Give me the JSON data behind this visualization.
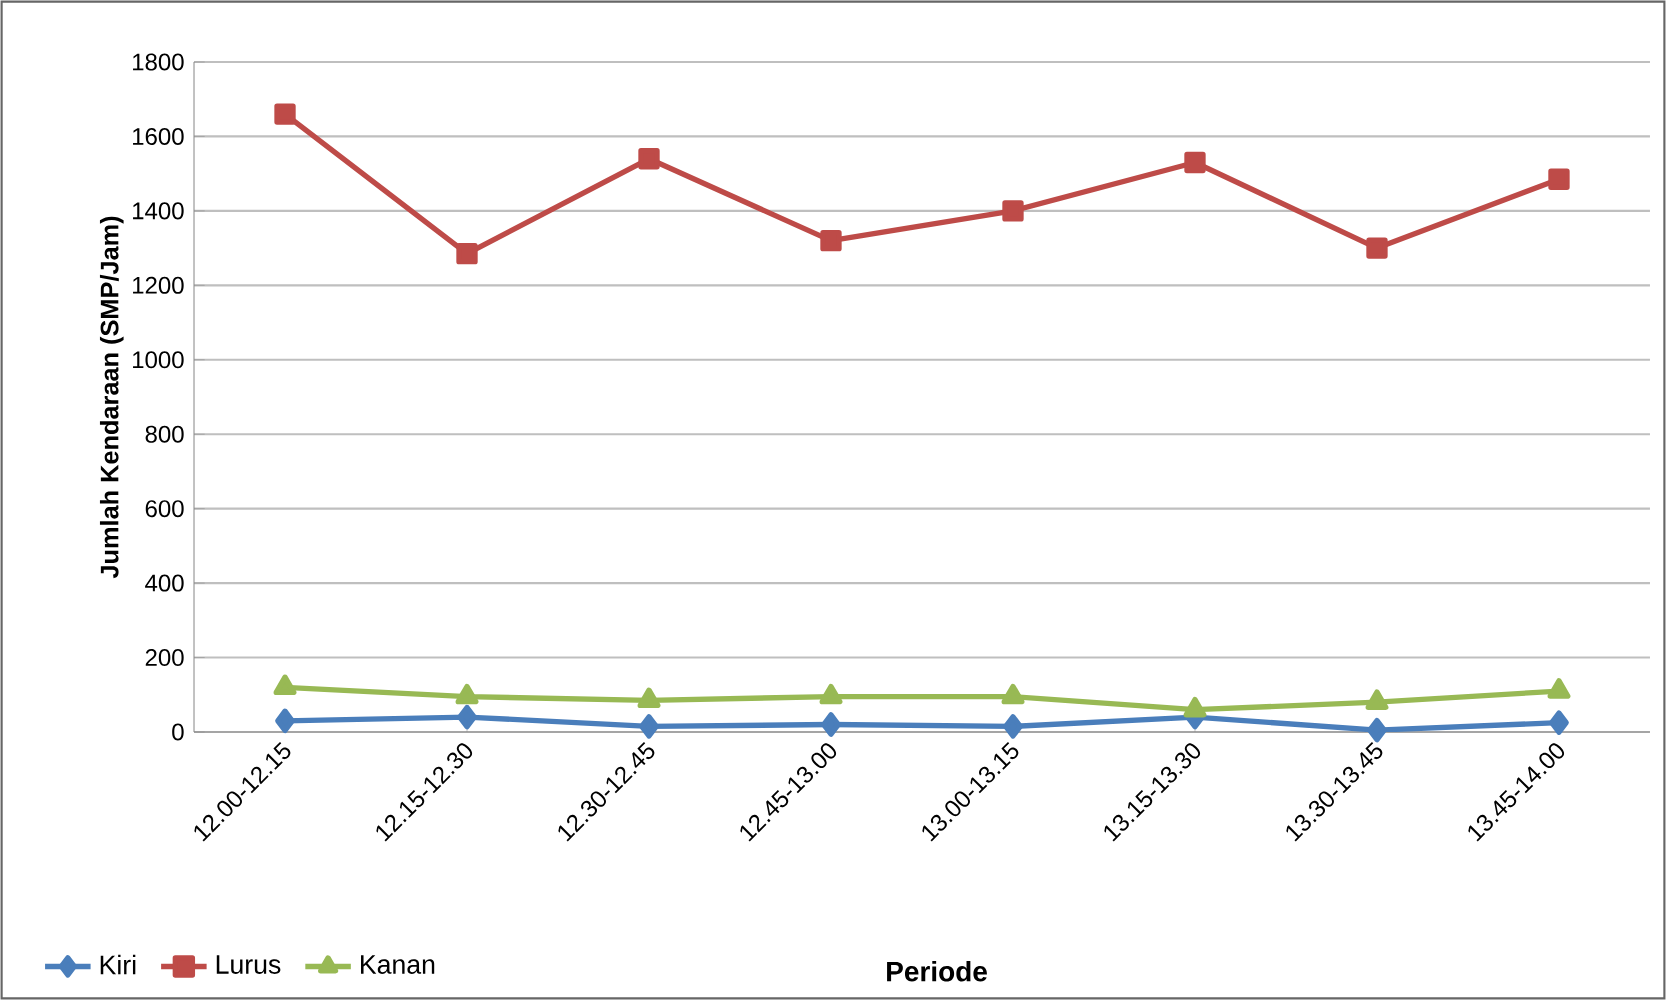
{
  "chart_data": {
    "type": "line",
    "xlabel": "Periode",
    "ylabel": "Jumlah Kendaraan (SMP/Jam)",
    "categories": [
      "12.00-12.15",
      "12.15-12.30",
      "12.30-12.45",
      "12.45-13.00",
      "13.00-13.15",
      "13.15-13.30",
      "13.30-13.45",
      "13.45-14.00"
    ],
    "series": [
      {
        "name": "Kiri",
        "color": "#4a7ebb",
        "marker": "diamond",
        "values": [
          30,
          40,
          15,
          20,
          15,
          40,
          5,
          25
        ]
      },
      {
        "name": "Lurus",
        "color": "#be4b48",
        "marker": "square",
        "values": [
          1660,
          1285,
          1540,
          1320,
          1400,
          1530,
          1300,
          1485
        ]
      },
      {
        "name": "Kanan",
        "color": "#98b954",
        "marker": "triangle",
        "values": [
          120,
          95,
          85,
          95,
          95,
          60,
          80,
          110
        ]
      }
    ],
    "ylim": [
      0,
      1800
    ],
    "yticks": [
      0,
      200,
      400,
      600,
      800,
      1000,
      1200,
      1400,
      1600,
      1800
    ],
    "grid": "y",
    "legend": "bottom left",
    "line_style": "solid"
  }
}
